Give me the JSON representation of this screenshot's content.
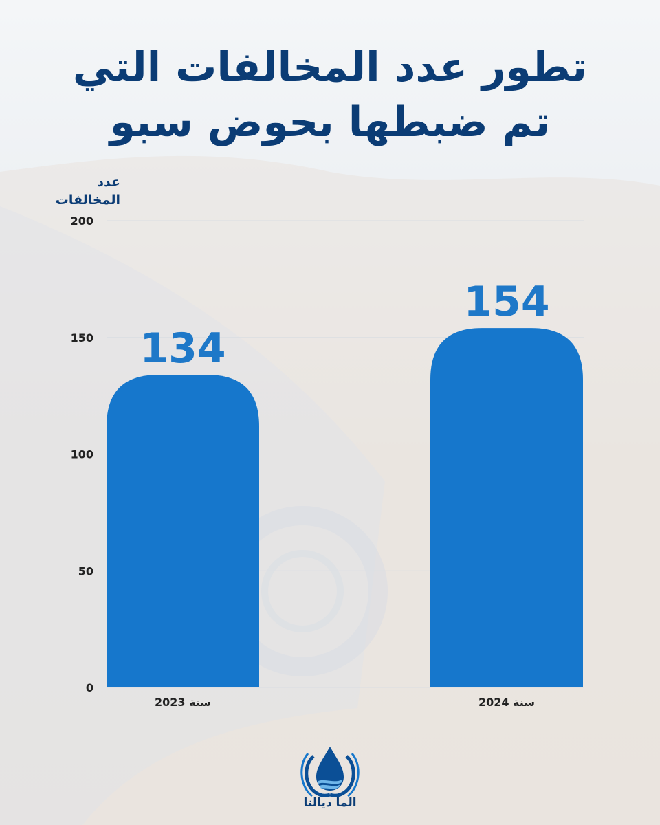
{
  "title": {
    "line1": "تطور عدد المخالفات التي",
    "line2": "تم ضبطها بحوض سبو"
  },
  "y_axis": {
    "label_line1": "عدد",
    "label_line2": "المخالفات"
  },
  "brand": {
    "name": "الما ديالنا",
    "icon": "water-drop-hands-icon"
  },
  "colors": {
    "bar": "#1677cc",
    "value_label": "#1e78c8",
    "title": "#0b3c75",
    "axis_text": "#222222",
    "grid": "#d9dde2"
  },
  "chart_data": {
    "type": "bar",
    "categories": [
      "سنة 2023",
      "سنة 2024"
    ],
    "values": [
      134,
      154
    ],
    "data_labels": [
      "134",
      "154"
    ],
    "title": "تطور عدد المخالفات التي تم ضبطها بحوض سبو",
    "xlabel": "",
    "ylabel": "عدد المخالفات",
    "ylim": [
      0,
      200
    ],
    "yticks": [
      0,
      50,
      100,
      150,
      200
    ],
    "grid": true
  }
}
